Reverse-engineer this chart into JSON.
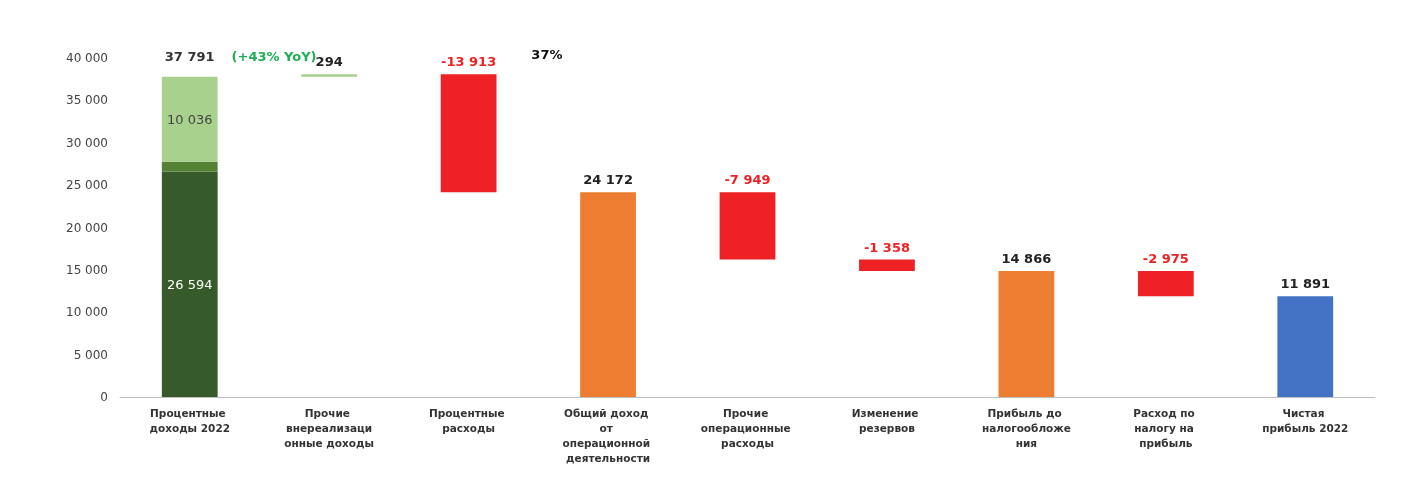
{
  "chart_data": {
    "type": "bar",
    "categories": [
      "Процентные доходы 2022",
      "Прочие внереализационные доходы",
      "Процентные расходы",
      "Общий доход от операционной деятельности",
      "Прочие операционные расходы",
      "Изменение резервов",
      "Прибыль до налогообложения",
      "Расход по налогу на прибыль",
      "Чистая прибыль 2022"
    ],
    "series": [
      {
        "color": "#375a2a",
        "values": [
          26594,
          null,
          null,
          null,
          null,
          null,
          null,
          null,
          null
        ],
        "base": [
          0,
          null,
          null,
          null,
          null,
          null,
          null,
          null,
          null
        ],
        "value_labels": [
          "26 594",
          null,
          null,
          null,
          null,
          null,
          null,
          null,
          null
        ]
      },
      {
        "color": "#548235",
        "values": [
          1161,
          null,
          null,
          null,
          null,
          null,
          null,
          null,
          null
        ],
        "base": [
          26594,
          null,
          null,
          null,
          null,
          null,
          null,
          null,
          null
        ]
      },
      {
        "color": "#a9d18e",
        "values": [
          10036,
          294,
          null,
          null,
          null,
          null,
          null,
          null,
          null
        ],
        "base": [
          27755,
          37791,
          null,
          null,
          null,
          null,
          null,
          null,
          null
        ],
        "value_labels": [
          "10 036",
          "294",
          null,
          null,
          null,
          null,
          null,
          null,
          null
        ]
      },
      {
        "color": "#ee2124",
        "values": [
          null,
          null,
          -13913,
          null,
          -7949,
          -1358,
          null,
          -2975,
          null
        ],
        "base": [
          null,
          null,
          38085,
          null,
          24172,
          16223,
          null,
          14866,
          null
        ],
        "value_labels": [
          null,
          null,
          "-13 913",
          null,
          "-7 949",
          "-1 358",
          null,
          "-2 975",
          null
        ]
      },
      {
        "color": "#ed7d31",
        "values": [
          null,
          null,
          null,
          24172,
          null,
          null,
          14866,
          null,
          null
        ],
        "base": [
          null,
          null,
          null,
          0,
          null,
          null,
          0,
          null,
          null
        ],
        "value_labels": [
          null,
          null,
          null,
          "24 172",
          null,
          null,
          "14 866",
          null,
          null
        ]
      },
      {
        "color": "#4472c4",
        "values": [
          null,
          null,
          null,
          null,
          null,
          null,
          null,
          null,
          11891
        ],
        "base": [
          null,
          null,
          null,
          null,
          null,
          null,
          null,
          null,
          0
        ],
        "value_labels": [
          null,
          null,
          null,
          null,
          null,
          null,
          null,
          null,
          "11 891"
        ]
      }
    ],
    "totals": [
      "37 791",
      null,
      null,
      null,
      null,
      null,
      null,
      null,
      null
    ],
    "annotations": [
      "(+43% YoY)",
      "37%"
    ],
    "ylim": [
      0,
      40000
    ],
    "yticks": [
      {
        "value": 0,
        "label": "0"
      },
      {
        "value": 5000,
        "label": "5 000"
      },
      {
        "value": 10000,
        "label": "10 000"
      },
      {
        "value": 15000,
        "label": "15 000"
      },
      {
        "value": 20000,
        "label": "20 000"
      },
      {
        "value": 25000,
        "label": "25 000"
      },
      {
        "value": 30000,
        "label": "30 000"
      },
      {
        "value": 35000,
        "label": "35 000"
      },
      {
        "value": 40000,
        "label": "40 000"
      }
    ]
  }
}
